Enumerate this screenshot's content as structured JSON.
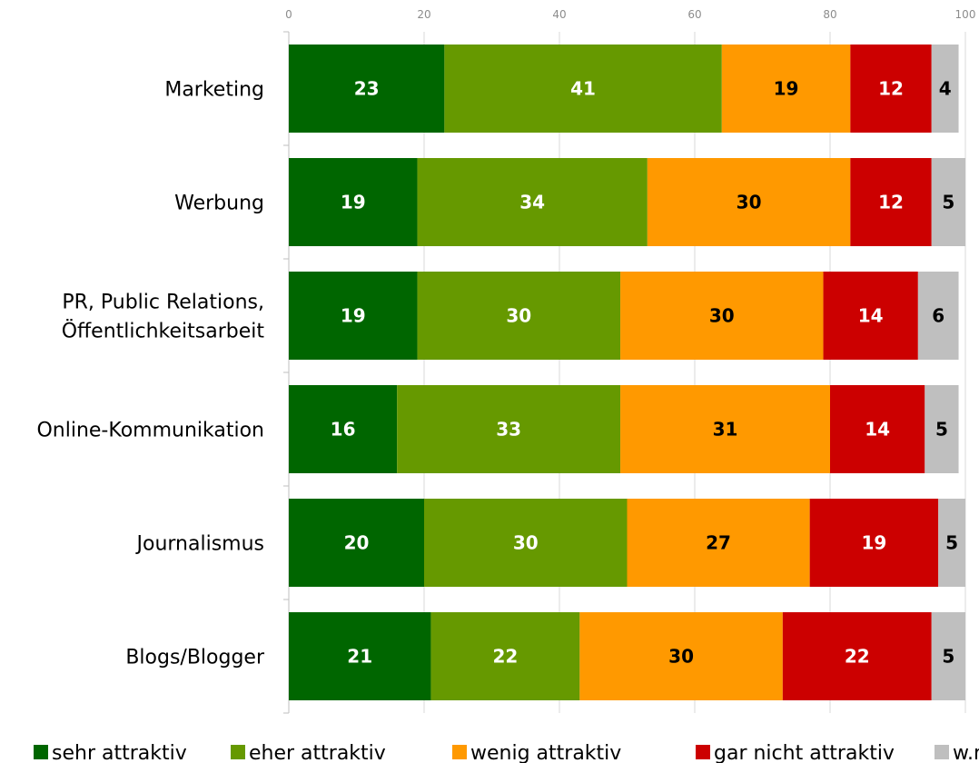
{
  "chart_data": {
    "type": "bar",
    "orientation": "horizontal",
    "stacked": true,
    "title": "",
    "xlabel": "",
    "ylabel": "",
    "xlim": [
      0,
      100
    ],
    "x_ticks": [
      0,
      20,
      40,
      60,
      80,
      100
    ],
    "grid": true,
    "legend_position": "bottom",
    "categories": [
      "Marketing",
      "Werbung",
      "PR, Public Relations, Öffentlichkeitsarbeit",
      "Online-Kommunikation",
      "Journalismus",
      "Blogs/Blogger"
    ],
    "category_lines": [
      [
        "Marketing"
      ],
      [
        "Werbung"
      ],
      [
        "PR, Public Relations,",
        "Öffentlichkeitsarbeit"
      ],
      [
        "Online-Kommunikation"
      ],
      [
        "Journalismus"
      ],
      [
        "Blogs/Blogger"
      ]
    ],
    "series": [
      {
        "name": "sehr attraktiv",
        "color": "#006600",
        "label_color": "#ffffff",
        "values": [
          23,
          19,
          19,
          16,
          20,
          21
        ]
      },
      {
        "name": "eher attraktiv",
        "color": "#669900",
        "label_color": "#ffffff",
        "values": [
          41,
          34,
          30,
          33,
          30,
          22
        ]
      },
      {
        "name": "wenig attraktiv",
        "color": "#ff9900",
        "label_color": "#000000",
        "values": [
          19,
          30,
          30,
          31,
          27,
          30
        ]
      },
      {
        "name": "gar nicht attraktiv",
        "color": "#cc0000",
        "label_color": "#ffffff",
        "values": [
          12,
          12,
          14,
          14,
          19,
          22
        ]
      },
      {
        "name": "w.n.",
        "color": "#bfbfbf",
        "label_color": "#000000",
        "values": [
          4,
          5,
          6,
          5,
          5,
          5
        ]
      }
    ]
  }
}
